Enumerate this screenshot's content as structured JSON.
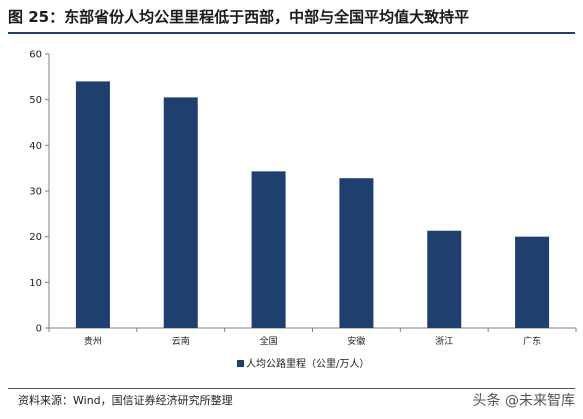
{
  "title": "图 25：东部省份人均公里里程低于西部，中部与全国平均值大致持平",
  "source": "资料来源：Wind，国信证券经济研究所整理",
  "watermark": "头条 @未来智库",
  "colors": {
    "bar": "#1f3f6e",
    "axis": "#808080",
    "rule": "#1f3f6e"
  },
  "chart_data": {
    "type": "bar",
    "categories": [
      "贵州",
      "云南",
      "全国",
      "安徽",
      "浙江",
      "广东"
    ],
    "series": [
      {
        "name": "人均公路里程（公里/万人）",
        "values": [
          54,
          50.5,
          34.3,
          32.8,
          21.3,
          20
        ]
      }
    ],
    "ylim": [
      0,
      60
    ],
    "yticks": [
      0,
      10,
      20,
      30,
      40,
      50,
      60
    ],
    "legend_position": "bottom",
    "grid": false
  }
}
